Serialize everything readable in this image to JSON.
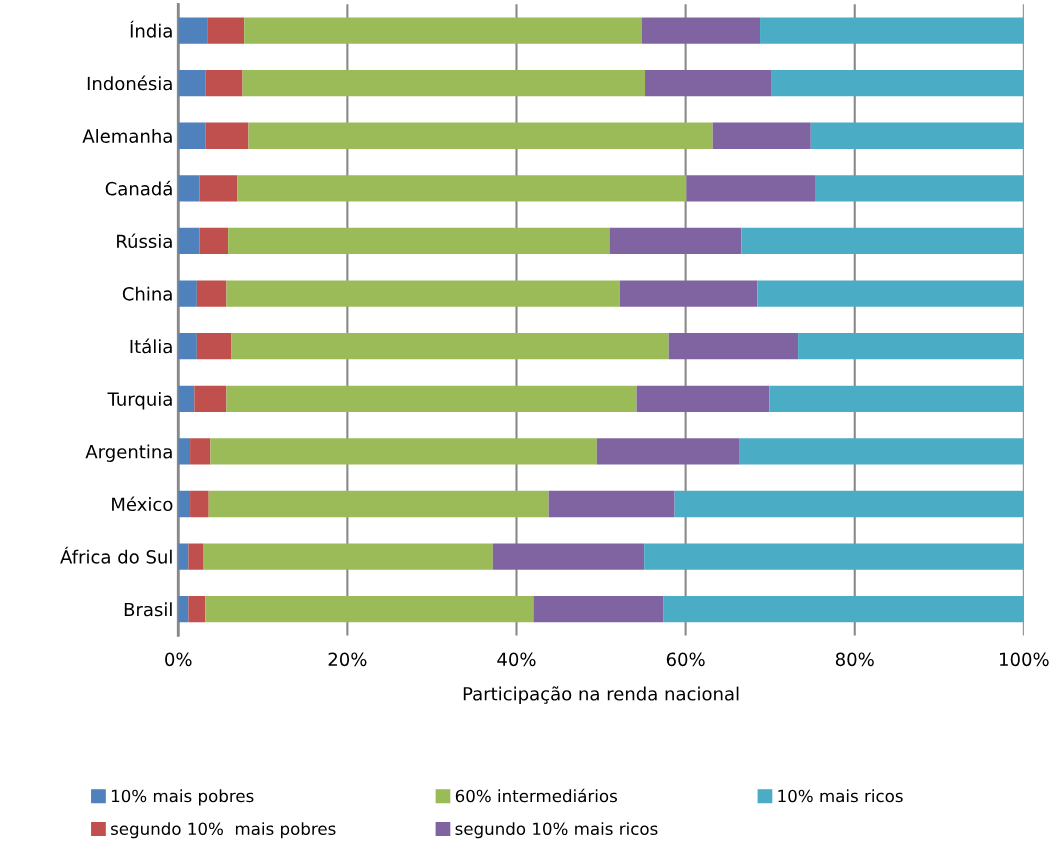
{
  "chart_data": {
    "type": "bar",
    "orientation": "horizontal",
    "stacked": true,
    "xlabel": "Participação na renda nacional",
    "categories": [
      "Índia",
      "Indonésia",
      "Alemanha",
      "Canadá",
      "Rússia",
      "China",
      "Itália",
      "Turquia",
      "Argentina",
      "México",
      "África do Sul",
      "Brasil"
    ],
    "series": [
      {
        "name": "10% mais pobres",
        "color": "#4f81bd",
        "values": [
          3.5,
          3.2,
          3.2,
          2.5,
          2.5,
          2.2,
          2.2,
          1.9,
          1.4,
          1.4,
          1.2,
          1.2
        ]
      },
      {
        "name": "segundo 10%  mais pobres",
        "color": "#c0504d",
        "values": [
          4.3,
          4.4,
          5.1,
          4.5,
          3.4,
          3.5,
          4.1,
          3.8,
          2.4,
          2.2,
          1.8,
          2.0
        ]
      },
      {
        "name": "60% intermediários",
        "color": "#9bbb59",
        "values": [
          47.0,
          47.6,
          54.9,
          53.1,
          45.1,
          46.5,
          51.7,
          48.5,
          45.7,
          40.2,
          34.2,
          38.8
        ]
      },
      {
        "name": "segundo 10% mais ricos",
        "color": "#8064a2",
        "values": [
          14.0,
          14.9,
          11.6,
          15.2,
          15.6,
          16.3,
          15.3,
          15.7,
          16.9,
          14.9,
          17.9,
          15.4
        ]
      },
      {
        "name": "10% mais ricos",
        "color": "#4bacc6",
        "values": [
          31.2,
          29.9,
          25.2,
          24.7,
          33.4,
          31.5,
          26.7,
          30.1,
          33.6,
          41.3,
          44.9,
          42.6
        ]
      }
    ],
    "xlim": [
      0,
      100
    ],
    "xticks": [
      {
        "value": 0,
        "label": "0%"
      },
      {
        "value": 20,
        "label": "20%"
      },
      {
        "value": 40,
        "label": "40%"
      },
      {
        "value": 60,
        "label": "60%"
      },
      {
        "value": 80,
        "label": "80%"
      },
      {
        "value": 100,
        "label": "100%"
      }
    ],
    "grid": "x",
    "legend": "bottom"
  }
}
